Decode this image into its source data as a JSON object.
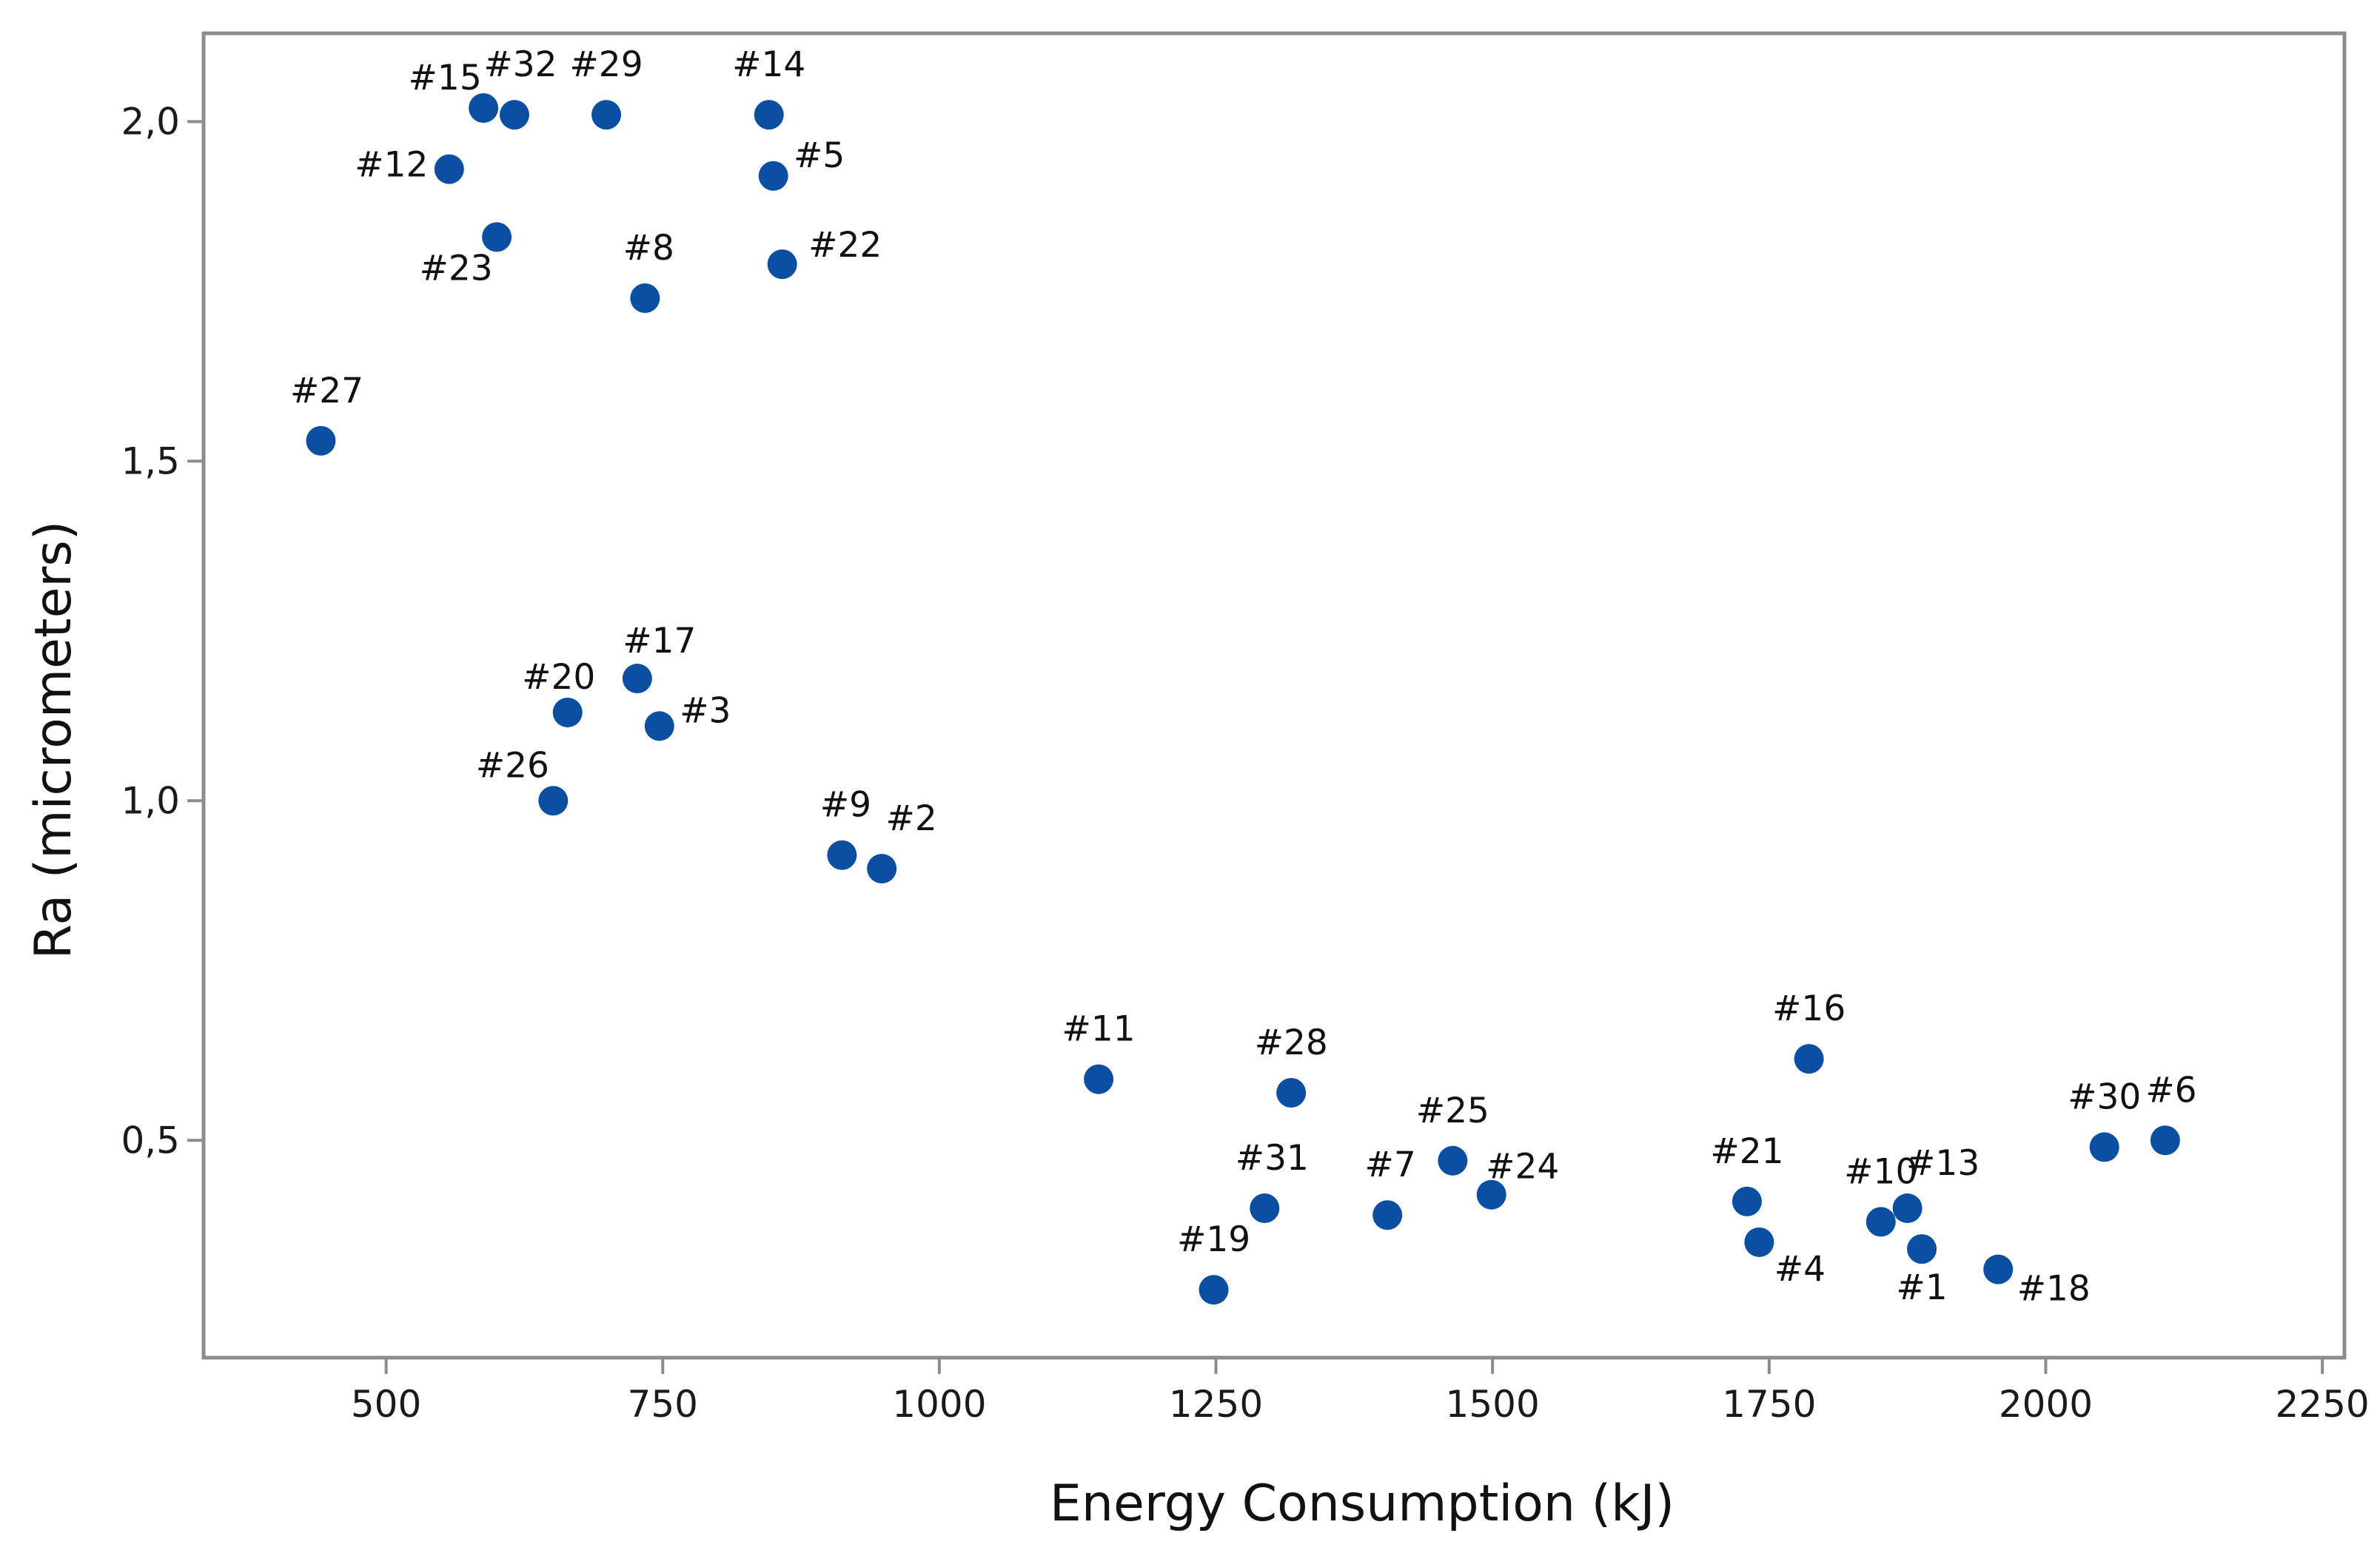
{
  "chart_data": {
    "type": "scatter",
    "xlabel": "Energy Consumption (kJ)",
    "ylabel": "Ra (micrometers)",
    "xlim": [
      335,
      2270
    ],
    "ylim": [
      0.18,
      2.13
    ],
    "x_ticks": [
      500,
      750,
      1000,
      1250,
      1500,
      1750,
      2000,
      2250
    ],
    "y_ticks": [
      0.5,
      1.0,
      1.5,
      2.0
    ],
    "x_tick_labels": [
      "500",
      "750",
      "1000",
      "1250",
      "1500",
      "1750",
      "2000",
      "2250"
    ],
    "y_tick_labels": [
      "0,5",
      "1,0",
      "1,5",
      "2,0"
    ],
    "grid": false,
    "legend": "none",
    "marker_color": "#0b4fa3",
    "points": [
      {
        "label": "#1",
        "x": 1888,
        "y": 0.34
      },
      {
        "label": "#2",
        "x": 948,
        "y": 0.9
      },
      {
        "label": "#3",
        "x": 747,
        "y": 1.11
      },
      {
        "label": "#4",
        "x": 1741,
        "y": 0.35
      },
      {
        "label": "#5",
        "x": 850,
        "y": 1.92
      },
      {
        "label": "#6",
        "x": 2108,
        "y": 0.5
      },
      {
        "label": "#7",
        "x": 1405,
        "y": 0.39
      },
      {
        "label": "#8",
        "x": 734,
        "y": 1.74
      },
      {
        "label": "#9",
        "x": 912,
        "y": 0.92
      },
      {
        "label": "#10",
        "x": 1851,
        "y": 0.38
      },
      {
        "label": "#11",
        "x": 1144,
        "y": 0.59
      },
      {
        "label": "#12",
        "x": 557,
        "y": 1.93
      },
      {
        "label": "#13",
        "x": 1875,
        "y": 0.4
      },
      {
        "label": "#14",
        "x": 846,
        "y": 2.01
      },
      {
        "label": "#15",
        "x": 588,
        "y": 2.02
      },
      {
        "label": "#16",
        "x": 1786,
        "y": 0.62
      },
      {
        "label": "#17",
        "x": 727,
        "y": 1.18
      },
      {
        "label": "#18",
        "x": 1957,
        "y": 0.31
      },
      {
        "label": "#19",
        "x": 1248,
        "y": 0.28
      },
      {
        "label": "#20",
        "x": 664,
        "y": 1.13
      },
      {
        "label": "#21",
        "x": 1730,
        "y": 0.41
      },
      {
        "label": "#22",
        "x": 858,
        "y": 1.79
      },
      {
        "label": "#23",
        "x": 600,
        "y": 1.83
      },
      {
        "label": "#24",
        "x": 1499,
        "y": 0.42
      },
      {
        "label": "#25",
        "x": 1464,
        "y": 0.47
      },
      {
        "label": "#26",
        "x": 651,
        "y": 1.0
      },
      {
        "label": "#27",
        "x": 441,
        "y": 1.53
      },
      {
        "label": "#28",
        "x": 1318,
        "y": 0.57
      },
      {
        "label": "#29",
        "x": 699,
        "y": 2.01
      },
      {
        "label": "#30",
        "x": 2053,
        "y": 0.49
      },
      {
        "label": "#31",
        "x": 1294,
        "y": 0.4
      },
      {
        "label": "#32",
        "x": 616,
        "y": 2.01
      }
    ]
  }
}
